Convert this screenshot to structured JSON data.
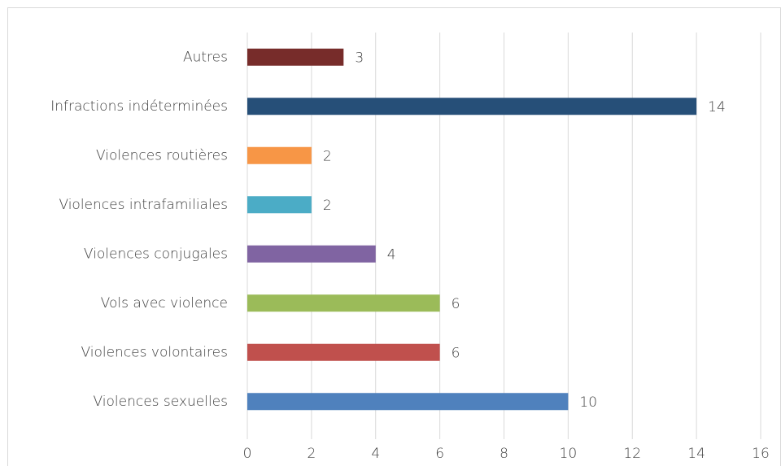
{
  "chart_data": {
    "type": "hbar",
    "categories": [
      "Autres",
      "Infractions indéterminées",
      "Violences routières",
      "Violences intrafamiliales",
      "Violences conjugales",
      "Vols avec violence",
      "Violences volontaires",
      "Violences sexuelles"
    ],
    "values": [
      3,
      14,
      2,
      2,
      4,
      6,
      6,
      10
    ],
    "colors": [
      "#772c2a",
      "#264f78",
      "#f79646",
      "#4bacc6",
      "#8064a2",
      "#9bbb59",
      "#c0504d",
      "#4f81bd"
    ],
    "xlim": [
      0,
      16
    ],
    "xticks": [
      0,
      2,
      4,
      6,
      8,
      10,
      12,
      14,
      16
    ],
    "grid": true
  }
}
